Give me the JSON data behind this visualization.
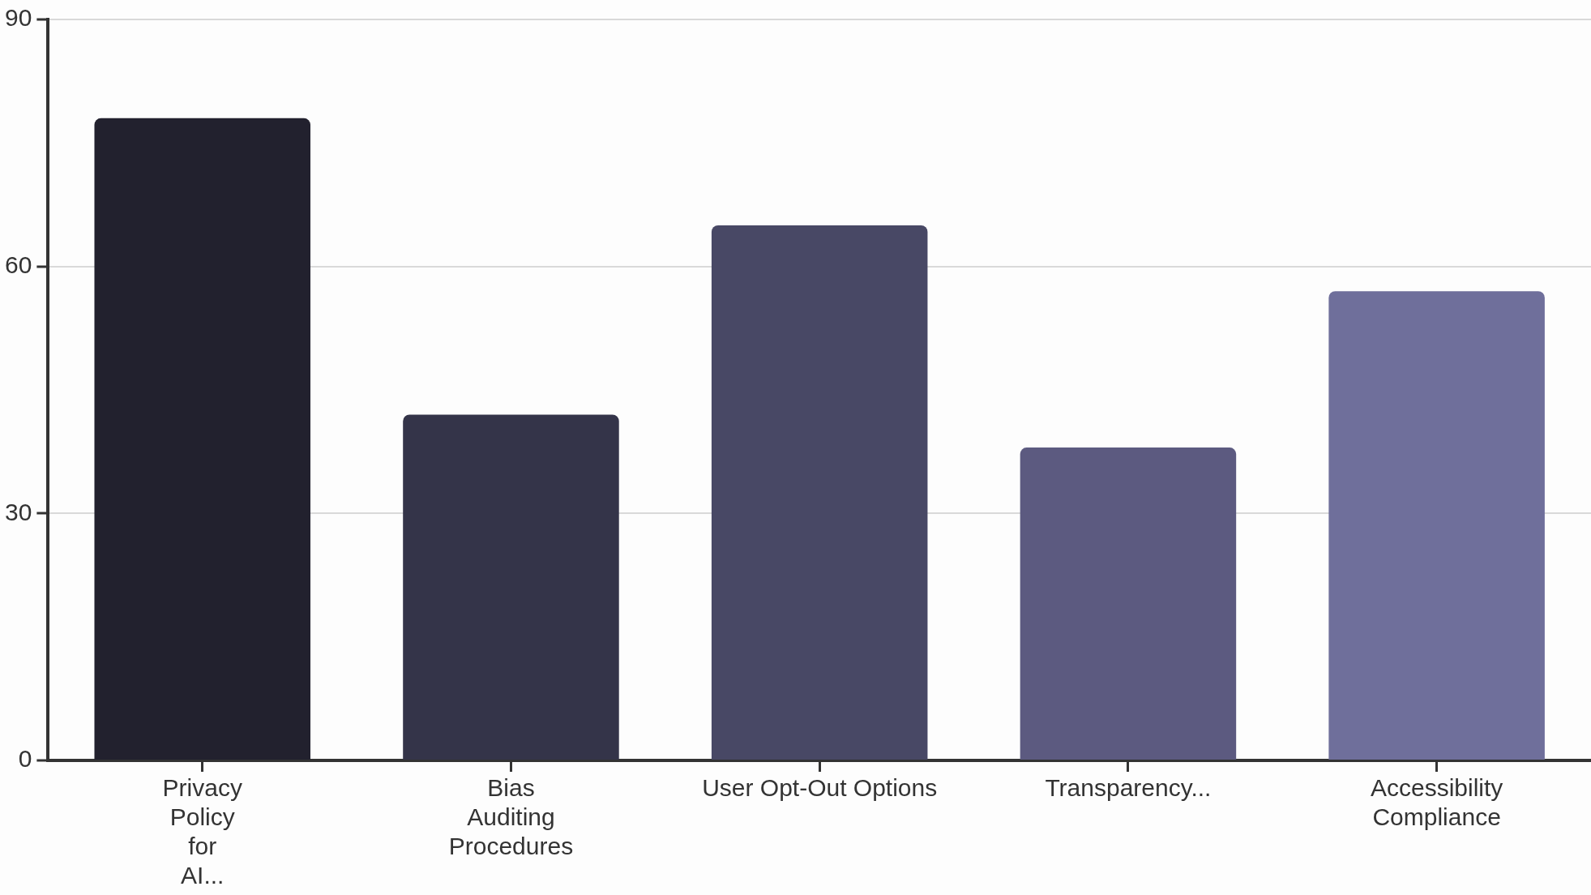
{
  "chart_data": {
    "type": "bar",
    "categories": [
      "Privacy Policy for AI...",
      "Bias Auditing Procedures",
      "User Opt-Out Options",
      "Transparency...",
      "Accessibility Compliance"
    ],
    "values": [
      78,
      42,
      65,
      38,
      57
    ],
    "colors": [
      "#22212e",
      "#343449",
      "#484865",
      "#5c5a80",
      "#6f6f9b"
    ],
    "ylim": [
      0,
      90
    ],
    "yticks": [
      0,
      30,
      60,
      90
    ],
    "grid": "y"
  }
}
